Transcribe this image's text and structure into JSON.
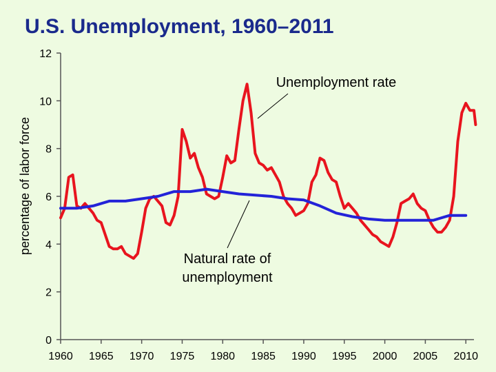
{
  "slide": {
    "title": "U.S. Unemployment, 1960–2011"
  },
  "chart_data": {
    "type": "line",
    "title": "U.S. Unemployment, 1960–2011",
    "xlabel": "",
    "ylabel": "percentage of labor force",
    "xlim": [
      1960,
      2011
    ],
    "ylim": [
      0,
      12
    ],
    "x_ticks": [
      "1960",
      "1965",
      "1970",
      "1975",
      "1980",
      "1985",
      "1990",
      "1995",
      "2000",
      "2005",
      "2010"
    ],
    "y_ticks": [
      "0",
      "2",
      "4",
      "6",
      "8",
      "10",
      "12"
    ],
    "grid": false,
    "legend": "none",
    "series": [
      {
        "name": "Unemployment rate",
        "color": "#e8141e",
        "points": [
          [
            1960.0,
            5.1
          ],
          [
            1960.5,
            5.5
          ],
          [
            1961.0,
            6.8
          ],
          [
            1961.5,
            6.9
          ],
          [
            1962.0,
            5.6
          ],
          [
            1962.5,
            5.5
          ],
          [
            1963.0,
            5.7
          ],
          [
            1963.5,
            5.5
          ],
          [
            1964.0,
            5.3
          ],
          [
            1964.5,
            5.0
          ],
          [
            1965.0,
            4.9
          ],
          [
            1965.5,
            4.4
          ],
          [
            1966.0,
            3.9
          ],
          [
            1966.5,
            3.8
          ],
          [
            1967.0,
            3.8
          ],
          [
            1967.5,
            3.9
          ],
          [
            1968.0,
            3.6
          ],
          [
            1968.5,
            3.5
          ],
          [
            1969.0,
            3.4
          ],
          [
            1969.5,
            3.6
          ],
          [
            1970.0,
            4.5
          ],
          [
            1970.5,
            5.5
          ],
          [
            1971.0,
            5.9
          ],
          [
            1971.5,
            6.0
          ],
          [
            1972.0,
            5.8
          ],
          [
            1972.5,
            5.6
          ],
          [
            1973.0,
            4.9
          ],
          [
            1973.5,
            4.8
          ],
          [
            1974.0,
            5.2
          ],
          [
            1974.5,
            6.0
          ],
          [
            1975.0,
            8.8
          ],
          [
            1975.5,
            8.3
          ],
          [
            1976.0,
            7.6
          ],
          [
            1976.5,
            7.8
          ],
          [
            1977.0,
            7.2
          ],
          [
            1977.5,
            6.8
          ],
          [
            1978.0,
            6.1
          ],
          [
            1978.5,
            6.0
          ],
          [
            1979.0,
            5.9
          ],
          [
            1979.5,
            6.0
          ],
          [
            1980.0,
            6.8
          ],
          [
            1980.5,
            7.7
          ],
          [
            1981.0,
            7.4
          ],
          [
            1981.5,
            7.5
          ],
          [
            1982.0,
            8.8
          ],
          [
            1982.5,
            10.0
          ],
          [
            1983.0,
            10.7
          ],
          [
            1983.5,
            9.5
          ],
          [
            1984.0,
            7.8
          ],
          [
            1984.5,
            7.4
          ],
          [
            1985.0,
            7.3
          ],
          [
            1985.5,
            7.1
          ],
          [
            1986.0,
            7.2
          ],
          [
            1986.5,
            6.9
          ],
          [
            1987.0,
            6.6
          ],
          [
            1987.5,
            6.0
          ],
          [
            1988.0,
            5.7
          ],
          [
            1988.5,
            5.5
          ],
          [
            1989.0,
            5.2
          ],
          [
            1989.5,
            5.3
          ],
          [
            1990.0,
            5.4
          ],
          [
            1990.5,
            5.7
          ],
          [
            1991.0,
            6.6
          ],
          [
            1991.5,
            6.9
          ],
          [
            1992.0,
            7.6
          ],
          [
            1992.5,
            7.5
          ],
          [
            1993.0,
            7.0
          ],
          [
            1993.5,
            6.7
          ],
          [
            1994.0,
            6.6
          ],
          [
            1994.5,
            6.0
          ],
          [
            1995.0,
            5.5
          ],
          [
            1995.5,
            5.7
          ],
          [
            1996.0,
            5.5
          ],
          [
            1996.5,
            5.3
          ],
          [
            1997.0,
            5.0
          ],
          [
            1997.5,
            4.8
          ],
          [
            1998.0,
            4.6
          ],
          [
            1998.5,
            4.4
          ],
          [
            1999.0,
            4.3
          ],
          [
            1999.5,
            4.1
          ],
          [
            2000.0,
            4.0
          ],
          [
            2000.5,
            3.9
          ],
          [
            2001.0,
            4.3
          ],
          [
            2001.5,
            4.9
          ],
          [
            2002.0,
            5.7
          ],
          [
            2002.5,
            5.8
          ],
          [
            2003.0,
            5.9
          ],
          [
            2003.5,
            6.1
          ],
          [
            2004.0,
            5.7
          ],
          [
            2004.5,
            5.5
          ],
          [
            2005.0,
            5.4
          ],
          [
            2005.5,
            5.0
          ],
          [
            2006.0,
            4.7
          ],
          [
            2006.5,
            4.5
          ],
          [
            2007.0,
            4.5
          ],
          [
            2007.5,
            4.7
          ],
          [
            2008.0,
            5.0
          ],
          [
            2008.5,
            6.0
          ],
          [
            2009.0,
            8.3
          ],
          [
            2009.5,
            9.5
          ],
          [
            2010.0,
            9.9
          ],
          [
            2010.5,
            9.6
          ],
          [
            2011.0,
            9.6
          ],
          [
            2011.2,
            9.0
          ]
        ]
      },
      {
        "name": "Natural rate of unemployment",
        "color": "#2323d8",
        "points": [
          [
            1960,
            5.5
          ],
          [
            1962,
            5.5
          ],
          [
            1964,
            5.6
          ],
          [
            1966,
            5.8
          ],
          [
            1968,
            5.8
          ],
          [
            1970,
            5.9
          ],
          [
            1972,
            6.0
          ],
          [
            1974,
            6.2
          ],
          [
            1976,
            6.2
          ],
          [
            1978,
            6.3
          ],
          [
            1980,
            6.2
          ],
          [
            1982,
            6.1
          ],
          [
            1984,
            6.05
          ],
          [
            1986,
            6.0
          ],
          [
            1988,
            5.9
          ],
          [
            1990,
            5.85
          ],
          [
            1992,
            5.6
          ],
          [
            1994,
            5.3
          ],
          [
            1996,
            5.15
          ],
          [
            1998,
            5.05
          ],
          [
            2000,
            5.0
          ],
          [
            2002,
            5.0
          ],
          [
            2004,
            5.0
          ],
          [
            2006,
            5.0
          ],
          [
            2008,
            5.2
          ],
          [
            2010,
            5.2
          ]
        ]
      }
    ],
    "annotations": [
      {
        "text": "Unemployment rate",
        "lines": [
          "Unemployment rate"
        ]
      },
      {
        "text": "Natural rate of unemployment",
        "lines": [
          "Natural rate of",
          "unemployment"
        ]
      }
    ]
  }
}
